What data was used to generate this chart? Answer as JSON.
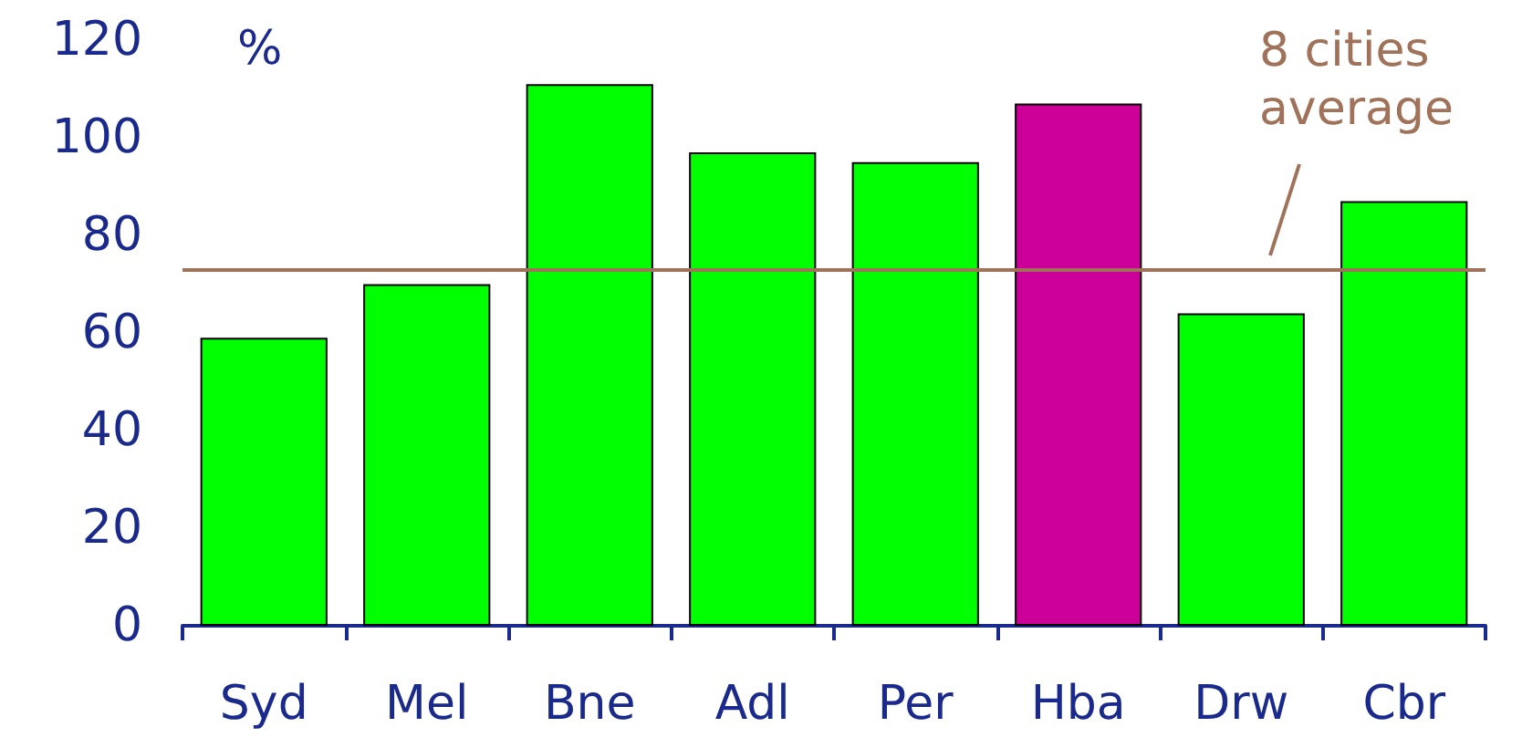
{
  "chart_data": {
    "type": "bar",
    "ylabel": "%",
    "categories": [
      "Syd",
      "Mel",
      "Bne",
      "Adl",
      "Per",
      "Hba",
      "Drw",
      "Cbr"
    ],
    "values": [
      59,
      70,
      111,
      97,
      95,
      107,
      64,
      87
    ],
    "colors": [
      "#00ff00",
      "#00ff00",
      "#00ff00",
      "#00ff00",
      "#00ff00",
      "#cc0099",
      "#00ff00",
      "#00ff00"
    ],
    "ylim": [
      0,
      120
    ],
    "yticks": [
      0,
      20,
      40,
      60,
      80,
      100,
      120
    ],
    "grid": false,
    "ref_lines": [
      {
        "axis": "y",
        "value": 73,
        "label": "8 cities average",
        "color": "#a0725a"
      }
    ]
  }
}
